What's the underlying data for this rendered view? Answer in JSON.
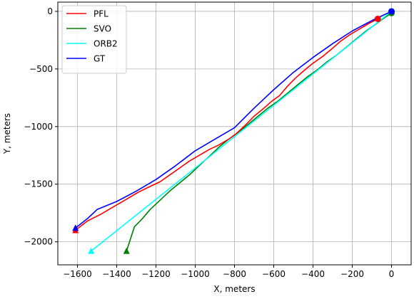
{
  "chart_data": {
    "type": "line",
    "title": "",
    "xlabel": "X, meters",
    "ylabel": "Y, meters",
    "xlim": [
      -1700,
      100
    ],
    "ylim": [
      -2200,
      80
    ],
    "grid": true,
    "legend_placement": "top-left",
    "x_ticks": [
      -1600,
      -1400,
      -1200,
      -1000,
      -800,
      -600,
      -400,
      -200,
      0
    ],
    "x_tick_labels": [
      "−1600",
      "−1400",
      "−1200",
      "−1000",
      "−800",
      "−600",
      "−400",
      "−200",
      "0"
    ],
    "y_ticks": [
      0,
      -500,
      -1000,
      -1500,
      -2000
    ],
    "y_tick_labels": [
      "0",
      "−500",
      "−1000",
      "−1500",
      "−2000"
    ],
    "series": [
      {
        "name": "PFL",
        "color": "#ff0000",
        "x": [
          -70,
          -110,
          -160,
          -210,
          -260,
          -300,
          -350,
          -400,
          -450,
          -490,
          -530,
          -570,
          -610,
          -650,
          -700,
          -740,
          -790,
          -830,
          -880,
          -930,
          -980,
          -1030,
          -1080,
          -1130,
          -1180,
          -1230,
          -1290,
          -1350,
          -1420,
          -1480,
          -1550,
          -1610
        ],
        "y": [
          -65,
          -100,
          -150,
          -200,
          -260,
          -320,
          -390,
          -450,
          -520,
          -580,
          -650,
          -730,
          -780,
          -840,
          -910,
          -980,
          -1060,
          -1110,
          -1160,
          -1200,
          -1250,
          -1300,
          -1360,
          -1420,
          -1480,
          -1520,
          -1570,
          -1630,
          -1700,
          -1760,
          -1820,
          -1900
        ]
      },
      {
        "name": "SVO",
        "color": "#008000",
        "x": [
          0,
          -40,
          -80,
          -130,
          -180,
          -230,
          -280,
          -330,
          -380,
          -430,
          -480,
          -530,
          -580,
          -630,
          -680,
          -730,
          -780,
          -830,
          -880,
          -930,
          -980,
          -1030,
          -1080,
          -1130,
          -1180,
          -1230,
          -1270,
          -1310,
          -1350
        ],
        "y": [
          -15,
          -60,
          -110,
          -170,
          -240,
          -310,
          -380,
          -440,
          -510,
          -570,
          -640,
          -710,
          -780,
          -840,
          -910,
          -980,
          -1050,
          -1110,
          -1180,
          -1260,
          -1340,
          -1420,
          -1490,
          -1560,
          -1640,
          -1720,
          -1800,
          -1870,
          -2080
        ]
      },
      {
        "name": "ORB2",
        "color": "#00ffff",
        "x": [
          0,
          -1530
        ],
        "y": [
          0,
          -2080
        ]
      },
      {
        "name": "GT",
        "color": "#0000ff",
        "x": [
          0,
          -100,
          -200,
          -300,
          -400,
          -500,
          -600,
          -700,
          -800,
          -900,
          -1000,
          -1100,
          -1200,
          -1300,
          -1400,
          -1500,
          -1550,
          -1610
        ],
        "y": [
          0,
          -80,
          -170,
          -280,
          -400,
          -530,
          -680,
          -840,
          -1010,
          -1110,
          -1210,
          -1340,
          -1460,
          -1560,
          -1650,
          -1720,
          -1800,
          -1880
        ]
      }
    ]
  }
}
